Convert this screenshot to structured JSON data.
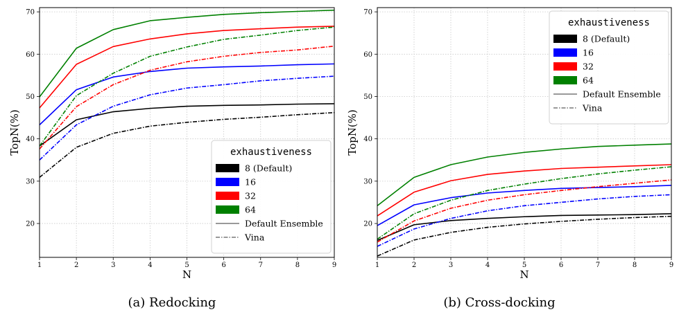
{
  "figure": {
    "legend_title": "exhaustiveness",
    "legend_entries": [
      "8 (Default)",
      "16",
      "32",
      "64"
    ],
    "style_entries": [
      "Default Ensemble",
      "Vina"
    ]
  },
  "colors": {
    "8": "#000000",
    "16": "#0000ff",
    "32": "#ff0000",
    "64": "#008000"
  },
  "chart_data": [
    {
      "type": "line",
      "caption": "(a) Redocking",
      "xlabel": "N",
      "ylabel": "TopN(%)",
      "x": [
        1,
        2,
        3,
        4,
        5,
        6,
        7,
        8,
        9
      ],
      "xlim": [
        1,
        9
      ],
      "ylim": [
        12,
        71
      ],
      "yticks": [
        20,
        30,
        40,
        50,
        60,
        70
      ],
      "grid": true,
      "legend_position": "lower-right",
      "series": [
        {
          "name": "8 (Default)",
          "style": "Default Ensemble",
          "color": "#000000",
          "values": [
            38.3,
            44.5,
            46.4,
            47.2,
            47.7,
            47.9,
            48.0,
            48.2,
            48.3
          ]
        },
        {
          "name": "16",
          "style": "Default Ensemble",
          "color": "#0000ff",
          "values": [
            43.3,
            51.6,
            54.6,
            55.9,
            56.7,
            57.0,
            57.2,
            57.5,
            57.7
          ]
        },
        {
          "name": "32",
          "style": "Default Ensemble",
          "color": "#ff0000",
          "values": [
            47.3,
            57.6,
            61.8,
            63.6,
            64.8,
            65.6,
            66.0,
            66.4,
            66.6
          ]
        },
        {
          "name": "64",
          "style": "Default Ensemble",
          "color": "#008000",
          "values": [
            49.9,
            61.4,
            65.8,
            67.9,
            68.7,
            69.4,
            69.8,
            70.1,
            70.4
          ]
        },
        {
          "name": "8 (Default)",
          "style": "Vina",
          "color": "#000000",
          "values": [
            30.9,
            38.0,
            41.3,
            43.0,
            43.9,
            44.6,
            45.1,
            45.7,
            46.2
          ]
        },
        {
          "name": "16",
          "style": "Vina",
          "color": "#0000ff",
          "values": [
            35.0,
            43.3,
            47.7,
            50.4,
            52.0,
            52.8,
            53.7,
            54.3,
            54.8
          ]
        },
        {
          "name": "32",
          "style": "Vina",
          "color": "#ff0000",
          "values": [
            37.6,
            47.6,
            52.8,
            56.2,
            58.2,
            59.5,
            60.4,
            61.0,
            61.9
          ]
        },
        {
          "name": "64",
          "style": "Vina",
          "color": "#008000",
          "values": [
            38.3,
            50.2,
            55.5,
            59.5,
            61.7,
            63.5,
            64.5,
            65.6,
            66.4
          ]
        }
      ]
    },
    {
      "type": "line",
      "caption": "(b) Cross-docking",
      "xlabel": "N",
      "ylabel": "TopN(%)",
      "x": [
        1,
        2,
        3,
        4,
        5,
        6,
        7,
        8,
        9
      ],
      "xlim": [
        1,
        9
      ],
      "ylim": [
        12,
        71
      ],
      "yticks": [
        20,
        30,
        40,
        50,
        60,
        70
      ],
      "grid": true,
      "legend_position": "top-right",
      "series": [
        {
          "name": "8 (Default)",
          "style": "Default Ensemble",
          "color": "#000000",
          "values": [
            16.0,
            19.7,
            20.7,
            21.2,
            21.6,
            21.9,
            22.0,
            22.1,
            22.3
          ]
        },
        {
          "name": "16",
          "style": "Default Ensemble",
          "color": "#0000ff",
          "values": [
            19.5,
            24.4,
            26.1,
            27.2,
            27.8,
            28.3,
            28.5,
            28.7,
            29.0
          ]
        },
        {
          "name": "32",
          "style": "Default Ensemble",
          "color": "#ff0000",
          "values": [
            21.8,
            27.4,
            30.1,
            31.6,
            32.4,
            33.0,
            33.3,
            33.6,
            33.9
          ]
        },
        {
          "name": "64",
          "style": "Default Ensemble",
          "color": "#008000",
          "values": [
            24.2,
            30.9,
            33.9,
            35.7,
            36.8,
            37.6,
            38.2,
            38.5,
            38.8
          ]
        },
        {
          "name": "8 (Default)",
          "style": "Vina",
          "color": "#000000",
          "values": [
            12.3,
            16.1,
            17.9,
            19.1,
            19.9,
            20.5,
            21.0,
            21.4,
            21.7
          ]
        },
        {
          "name": "16",
          "style": "Vina",
          "color": "#0000ff",
          "values": [
            14.6,
            18.7,
            21.2,
            23.0,
            24.2,
            25.0,
            25.8,
            26.4,
            26.8
          ]
        },
        {
          "name": "32",
          "style": "Vina",
          "color": "#ff0000",
          "values": [
            15.6,
            20.6,
            23.6,
            25.5,
            26.8,
            27.8,
            28.7,
            29.5,
            30.3
          ]
        },
        {
          "name": "64",
          "style": "Vina",
          "color": "#008000",
          "values": [
            16.3,
            22.3,
            25.5,
            27.8,
            29.3,
            30.6,
            31.7,
            32.6,
            33.4
          ]
        }
      ]
    }
  ]
}
